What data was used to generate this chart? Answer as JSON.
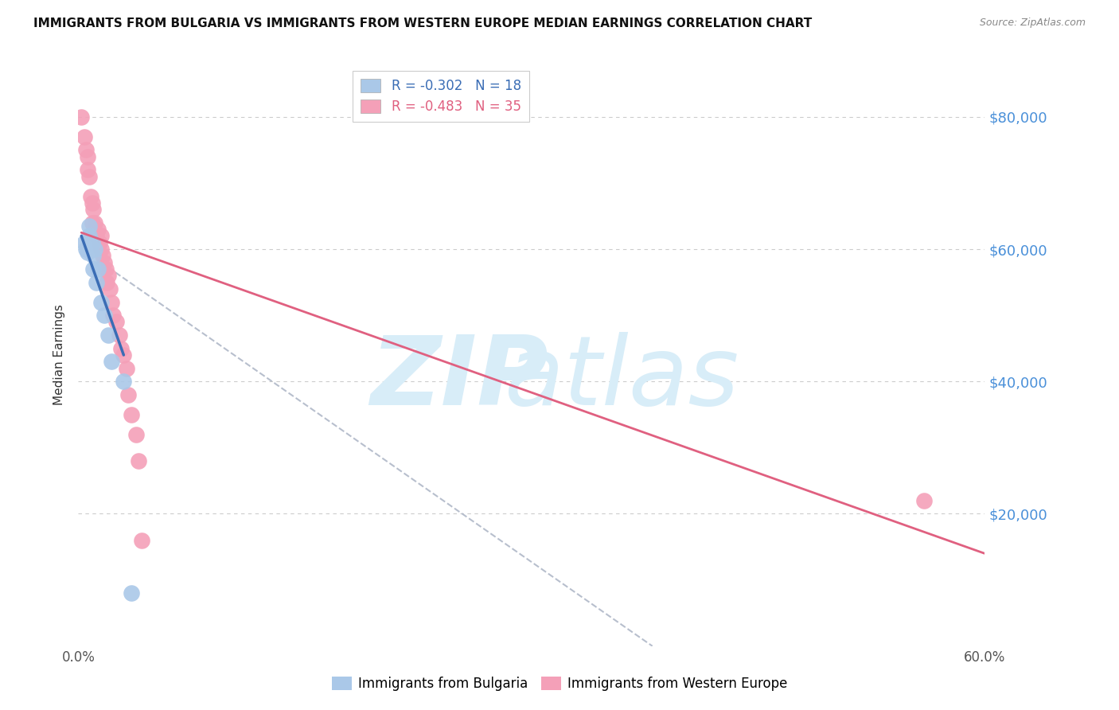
{
  "title": "IMMIGRANTS FROM BULGARIA VS IMMIGRANTS FROM WESTERN EUROPE MEDIAN EARNINGS CORRELATION CHART",
  "source": "Source: ZipAtlas.com",
  "ylabel": "Median Earnings",
  "xlim": [
    0.0,
    0.6
  ],
  "ylim": [
    0,
    88000
  ],
  "yticks": [
    0,
    20000,
    40000,
    60000,
    80000
  ],
  "ytick_labels": [
    "",
    "$20,000",
    "$40,000",
    "$60,000",
    "$80,000"
  ],
  "xticks": [
    0.0,
    0.1,
    0.2,
    0.3,
    0.4,
    0.5,
    0.6
  ],
  "xtick_labels": [
    "0.0%",
    "",
    "",
    "",
    "",
    "",
    "60.0%"
  ],
  "legend_entries": [
    {
      "label": "R = -0.302   N = 18",
      "color": "#aac8e8"
    },
    {
      "label": "R = -0.483   N = 35",
      "color": "#f4a0b8"
    }
  ],
  "legend_labels_bottom": [
    "Immigrants from Bulgaria",
    "Immigrants from Western Europe"
  ],
  "bg_color": "#ffffff",
  "grid_color": "#cccccc",
  "blue_color": "#aac8e8",
  "pink_color": "#f4a0b8",
  "blue_line_color": "#3a6db5",
  "pink_line_color": "#e06080",
  "dashed_line_color": "#b0b8c8",
  "blue_scatter": [
    [
      0.004,
      61000
    ],
    [
      0.005,
      60000
    ],
    [
      0.006,
      59500
    ],
    [
      0.007,
      62000
    ],
    [
      0.007,
      63500
    ],
    [
      0.008,
      60500
    ],
    [
      0.009,
      61000
    ],
    [
      0.01,
      57000
    ],
    [
      0.01,
      59000
    ],
    [
      0.011,
      60000
    ],
    [
      0.012,
      55000
    ],
    [
      0.013,
      57000
    ],
    [
      0.015,
      52000
    ],
    [
      0.017,
      50000
    ],
    [
      0.02,
      47000
    ],
    [
      0.022,
      43000
    ],
    [
      0.03,
      40000
    ],
    [
      0.035,
      8000
    ]
  ],
  "pink_scatter": [
    [
      0.002,
      80000
    ],
    [
      0.004,
      77000
    ],
    [
      0.005,
      75000
    ],
    [
      0.006,
      72000
    ],
    [
      0.006,
      74000
    ],
    [
      0.007,
      71000
    ],
    [
      0.008,
      68000
    ],
    [
      0.009,
      67000
    ],
    [
      0.009,
      64000
    ],
    [
      0.01,
      66000
    ],
    [
      0.011,
      64000
    ],
    [
      0.012,
      62000
    ],
    [
      0.013,
      63000
    ],
    [
      0.014,
      61000
    ],
    [
      0.015,
      60000
    ],
    [
      0.015,
      62000
    ],
    [
      0.016,
      59000
    ],
    [
      0.017,
      58000
    ],
    [
      0.018,
      57000
    ],
    [
      0.019,
      55000
    ],
    [
      0.02,
      56000
    ],
    [
      0.021,
      54000
    ],
    [
      0.022,
      52000
    ],
    [
      0.023,
      50000
    ],
    [
      0.025,
      49000
    ],
    [
      0.027,
      47000
    ],
    [
      0.028,
      45000
    ],
    [
      0.03,
      44000
    ],
    [
      0.032,
      42000
    ],
    [
      0.033,
      38000
    ],
    [
      0.035,
      35000
    ],
    [
      0.038,
      32000
    ],
    [
      0.04,
      28000
    ],
    [
      0.042,
      16000
    ],
    [
      0.56,
      22000
    ]
  ],
  "blue_line": {
    "x0": 0.002,
    "y0": 62000,
    "x1": 0.03,
    "y1": 44000
  },
  "pink_line": {
    "x0": 0.002,
    "y0": 62500,
    "x1": 0.6,
    "y1": 14000
  },
  "dashed_line": {
    "x0": 0.015,
    "y0": 58000,
    "x1": 0.38,
    "y1": 0
  }
}
